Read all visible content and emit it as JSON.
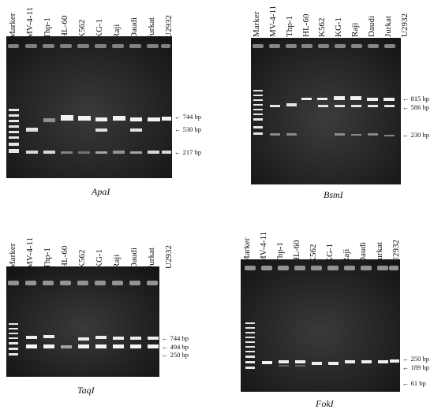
{
  "panels": [
    {
      "enzyme": "ApaI",
      "lanes": [
        "Marker",
        "MV-4-11",
        "Thp-1",
        "HL-60",
        "K562",
        "KG-1",
        "Raji",
        "Daudi",
        "Jurkat",
        "U2932"
      ],
      "markers": [
        {
          "label": "← 744 bp"
        },
        {
          "label": "← 530 bp"
        },
        {
          "label": "← 217 bp"
        }
      ]
    },
    {
      "enzyme": "BsmI",
      "lanes": [
        "Marker",
        "MV-4-11",
        "Thp-1",
        "HL-60",
        "K562",
        "KG-1",
        "Raji",
        "Daudi",
        "Jurkat",
        "U2932"
      ],
      "markers": [
        {
          "label": "← 815 bp"
        },
        {
          "label": "← 586 bp"
        },
        {
          "label": "← 230 bp"
        }
      ]
    },
    {
      "enzyme": "TaqI",
      "lanes": [
        "Marker",
        "MV-4-11",
        "Thp-1",
        "HL-60",
        "K562",
        "KG-1",
        "Raji",
        "Daudi",
        "Jurkat",
        "U2932"
      ],
      "markers": [
        {
          "label": "← 744 bp"
        },
        {
          "label": "← 494 bp"
        },
        {
          "label": "← 250 bp"
        }
      ]
    },
    {
      "enzyme": "FokI",
      "lanes": [
        "Marker",
        "MV-4-11",
        "Thp-1",
        "HL-60",
        "K562",
        "KG-1",
        "Raji",
        "Daudi",
        "Jurkat",
        "U2932"
      ],
      "markers": [
        {
          "label": "← 250 bp"
        },
        {
          "label": "← 189 bp"
        },
        {
          "label": "← 61 bp"
        }
      ]
    }
  ]
}
